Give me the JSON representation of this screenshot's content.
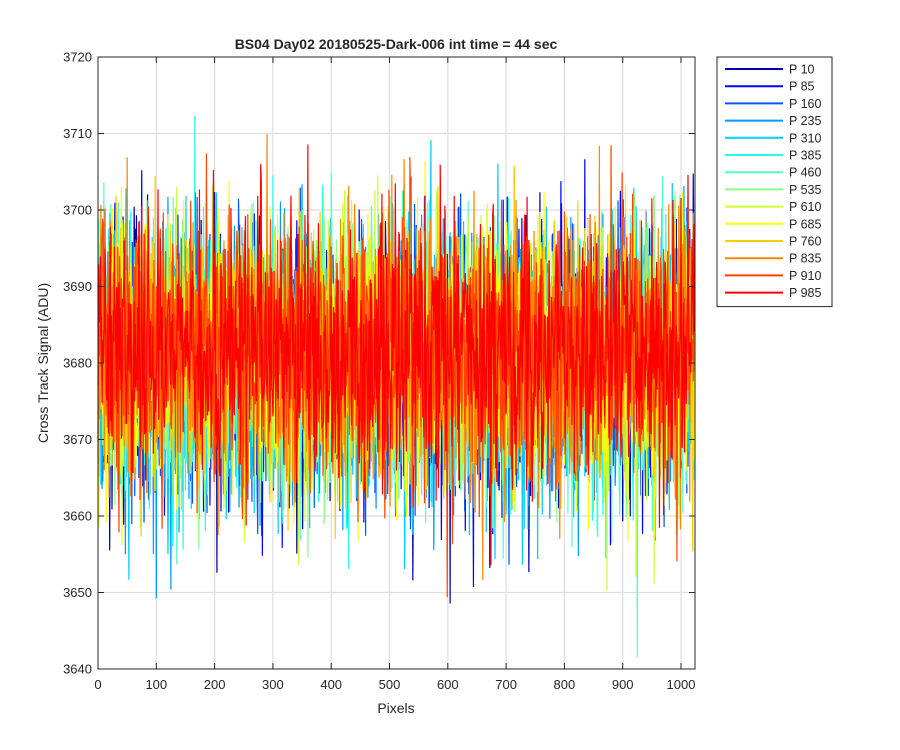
{
  "chart_data": {
    "type": "line",
    "title": "BS04 Day02 20180525-Dark-006 int time = 44 sec",
    "xlabel": "Pixels",
    "ylabel": "Cross Track Signal (ADU)",
    "xlim": [
      0,
      1024
    ],
    "ylim": [
      3640,
      3720
    ],
    "xticks": [
      0,
      100,
      200,
      300,
      400,
      500,
      600,
      700,
      800,
      900,
      1000
    ],
    "yticks": [
      3640,
      3650,
      3660,
      3670,
      3680,
      3690,
      3700,
      3710,
      3720
    ],
    "grid": true,
    "legend_position": "outside-top-right",
    "n_points_per_series": 1024,
    "series": [
      {
        "name": "P 10",
        "color": "#0000a8",
        "mean": 3680,
        "std": 8.5
      },
      {
        "name": "P 85",
        "color": "#0000ff",
        "mean": 3680,
        "std": 8.5
      },
      {
        "name": "P 160",
        "color": "#0055ff",
        "mean": 3680,
        "std": 8.5
      },
      {
        "name": "P 235",
        "color": "#0099ff",
        "mean": 3680,
        "std": 8.5
      },
      {
        "name": "P 310",
        "color": "#00ccff",
        "mean": 3680,
        "std": 8.5
      },
      {
        "name": "P 385",
        "color": "#22ffee",
        "mean": 3680,
        "std": 8.5
      },
      {
        "name": "P 460",
        "color": "#55ffcc",
        "mean": 3681,
        "std": 8.5
      },
      {
        "name": "P 535",
        "color": "#88ff88",
        "mean": 3681,
        "std": 8.5
      },
      {
        "name": "P 610",
        "color": "#ccff33",
        "mean": 3681,
        "std": 8.5
      },
      {
        "name": "P 685",
        "color": "#ffff00",
        "mean": 3681,
        "std": 8.5
      },
      {
        "name": "P 760",
        "color": "#ffcc00",
        "mean": 3681,
        "std": 8.5
      },
      {
        "name": "P 835",
        "color": "#ff8800",
        "mean": 3681,
        "std": 8.5
      },
      {
        "name": "P 910",
        "color": "#ff4400",
        "mean": 3682,
        "std": 8.5
      },
      {
        "name": "P 985",
        "color": "#ff0000",
        "mean": 3682,
        "std": 8.0
      }
    ]
  }
}
